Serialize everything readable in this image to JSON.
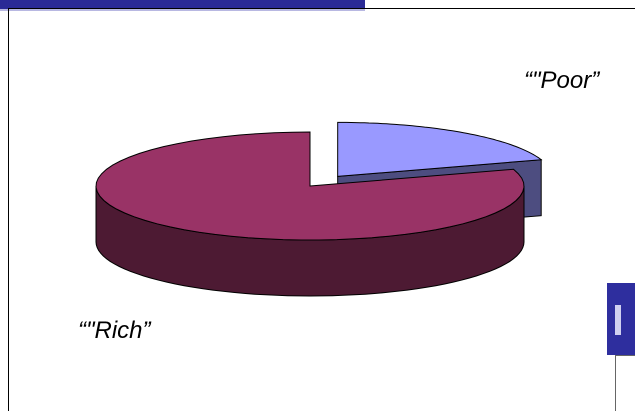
{
  "chart_data": {
    "type": "pie",
    "categories": [
      "“\"Poor”",
      "“\"Rich”"
    ],
    "values": [
      20,
      80
    ],
    "colors": [
      "#9999ff",
      "#993366"
    ]
  }
}
